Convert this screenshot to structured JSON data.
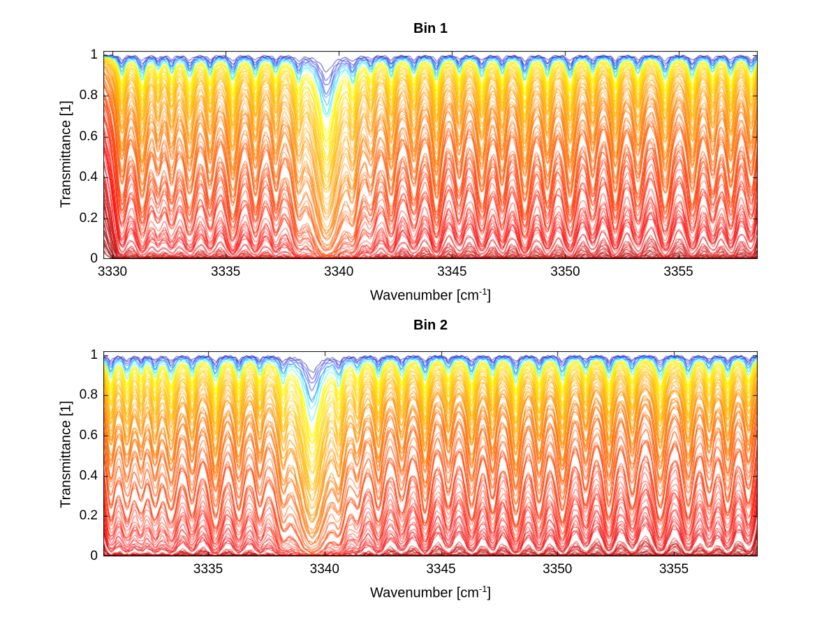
{
  "chart_data": [
    {
      "type": "line",
      "title": "Bin 1",
      "xlabel_base": "Wavenumber [cm",
      "xlabel_sup": "-1",
      "xlabel_close": "]",
      "ylabel": "Transmittance [1]",
      "xlim": [
        3329.6,
        3358.5
      ],
      "ylim": [
        0,
        1.02
      ],
      "xticks": [
        3330,
        3335,
        3340,
        3345,
        3350,
        3355
      ],
      "yticks": [
        0,
        0.2,
        0.4,
        0.6,
        0.8,
        1
      ],
      "grid": false,
      "legend": "none",
      "colormap": "jet",
      "n_spectra": 100,
      "continuum_absorbance": 0.04,
      "line_centers": [
        3330.4,
        3331.3,
        3332.0,
        3332.6,
        3333.4,
        3334.3,
        3335.3,
        3336.3,
        3337.2,
        3338.2,
        3339.45,
        3340.6,
        3341.4,
        3342.3,
        3343.3,
        3344.3,
        3345.3,
        3346.3,
        3347.2,
        3348.2,
        3349.2,
        3350.2,
        3351.2,
        3352.2,
        3353.2,
        3354.4,
        3355.6,
        3356.5,
        3357.3,
        3358.2
      ],
      "line_strengths": [
        1.1,
        1.3,
        0.7,
        0.9,
        1.2,
        1.0,
        1.4,
        1.1,
        0.9,
        1.2,
        4.0,
        1.3,
        0.8,
        1.1,
        1.0,
        1.3,
        0.9,
        1.2,
        1.0,
        1.4,
        1.1,
        1.3,
        0.9,
        1.2,
        1.0,
        1.3,
        1.2,
        0.9,
        1.1,
        1.0
      ],
      "line_widths": [
        0.12,
        0.13,
        0.11,
        0.12,
        0.14,
        0.12,
        0.13,
        0.12,
        0.11,
        0.13,
        0.3,
        0.13,
        0.12,
        0.12,
        0.13,
        0.12,
        0.12,
        0.13,
        0.11,
        0.13,
        0.12,
        0.13,
        0.12,
        0.12,
        0.13,
        0.14,
        0.13,
        0.12,
        0.12,
        0.13
      ]
    },
    {
      "type": "line",
      "title": "Bin 2",
      "xlabel_base": "Wavenumber [cm",
      "xlabel_sup": "-1",
      "xlabel_close": "]",
      "ylabel": "Transmittance [1]",
      "xlim": [
        3330.5,
        3358.6
      ],
      "ylim": [
        0,
        1.02
      ],
      "xticks": [
        3335,
        3340,
        3345,
        3350,
        3355
      ],
      "yticks": [
        0,
        0.2,
        0.4,
        0.6,
        0.8,
        1
      ],
      "grid": false,
      "legend": "none",
      "colormap": "jet",
      "n_spectra": 100,
      "continuum_absorbance": 0.04,
      "line_centers": [
        3330.8,
        3331.5,
        3332.1,
        3332.7,
        3333.4,
        3334.3,
        3335.3,
        3336.3,
        3337.2,
        3338.2,
        3339.45,
        3340.6,
        3341.4,
        3342.3,
        3343.3,
        3344.3,
        3345.3,
        3346.3,
        3347.2,
        3348.2,
        3349.2,
        3350.2,
        3351.2,
        3352.2,
        3353.2,
        3354.4,
        3355.6,
        3356.5,
        3357.3,
        3358.2
      ],
      "line_strengths": [
        1.2,
        1.1,
        0.8,
        1.0,
        1.2,
        1.0,
        1.4,
        1.1,
        0.9,
        1.2,
        4.0,
        1.3,
        0.8,
        1.1,
        1.0,
        1.3,
        0.9,
        1.2,
        1.0,
        1.4,
        1.1,
        1.3,
        0.9,
        1.2,
        1.0,
        1.3,
        1.2,
        0.9,
        1.1,
        1.0
      ],
      "line_widths": [
        0.12,
        0.13,
        0.11,
        0.12,
        0.14,
        0.12,
        0.13,
        0.12,
        0.11,
        0.13,
        0.3,
        0.13,
        0.12,
        0.12,
        0.13,
        0.12,
        0.12,
        0.13,
        0.11,
        0.13,
        0.12,
        0.13,
        0.12,
        0.12,
        0.13,
        0.14,
        0.13,
        0.12,
        0.12,
        0.13
      ]
    }
  ]
}
